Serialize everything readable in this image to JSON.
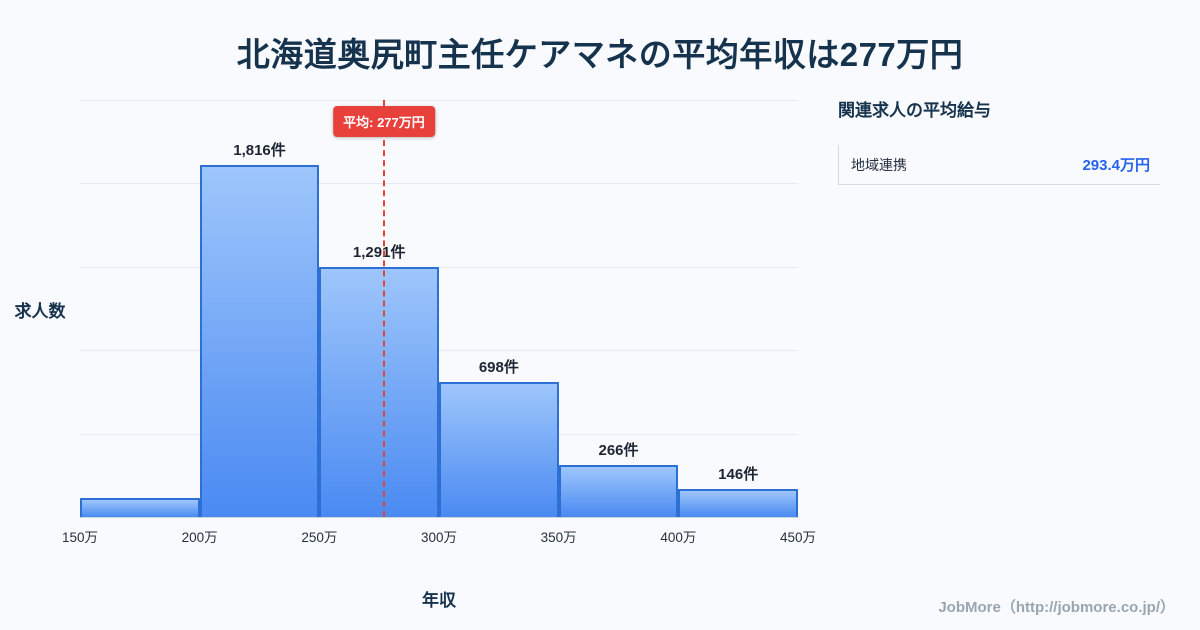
{
  "page": {
    "title": "北海道奥尻町主任ケアマネの平均年収は277万円",
    "footer": "JobMore（http://jobmore.co.jp/）"
  },
  "side_panel": {
    "heading": "関連求人の平均給与",
    "items": [
      {
        "label": "地域連携",
        "value": "293.4万円"
      }
    ]
  },
  "chart_data": {
    "type": "bar",
    "title": "北海道奥尻町主任ケアマネの平均年収は277万円",
    "xlabel": "年収",
    "ylabel": "求人数",
    "x_tick_labels": [
      "150万",
      "200万",
      "250万",
      "300万",
      "350万",
      "400万",
      "450万"
    ],
    "bin_edges_man_yen": [
      150,
      200,
      250,
      300,
      350,
      400,
      450
    ],
    "values": [
      100,
      1816,
      1291,
      698,
      266,
      146
    ],
    "value_labels": [
      "",
      "1,816件",
      "1,291件",
      "698件",
      "266件",
      "146件"
    ],
    "ylim": [
      0,
      2000
    ],
    "grid": "horizontal",
    "legend": "none",
    "average_line": {
      "value_man_yen": 277,
      "label": "平均: 277万円",
      "color": "#e8413c",
      "style": "dashed"
    },
    "colors": {
      "bar_gradient_top": "#9ec6fb",
      "bar_gradient_bottom": "#4a8af2",
      "bar_border": "#2d6fd2",
      "title_text": "#16334e",
      "accent_value": "#2563eb"
    }
  }
}
